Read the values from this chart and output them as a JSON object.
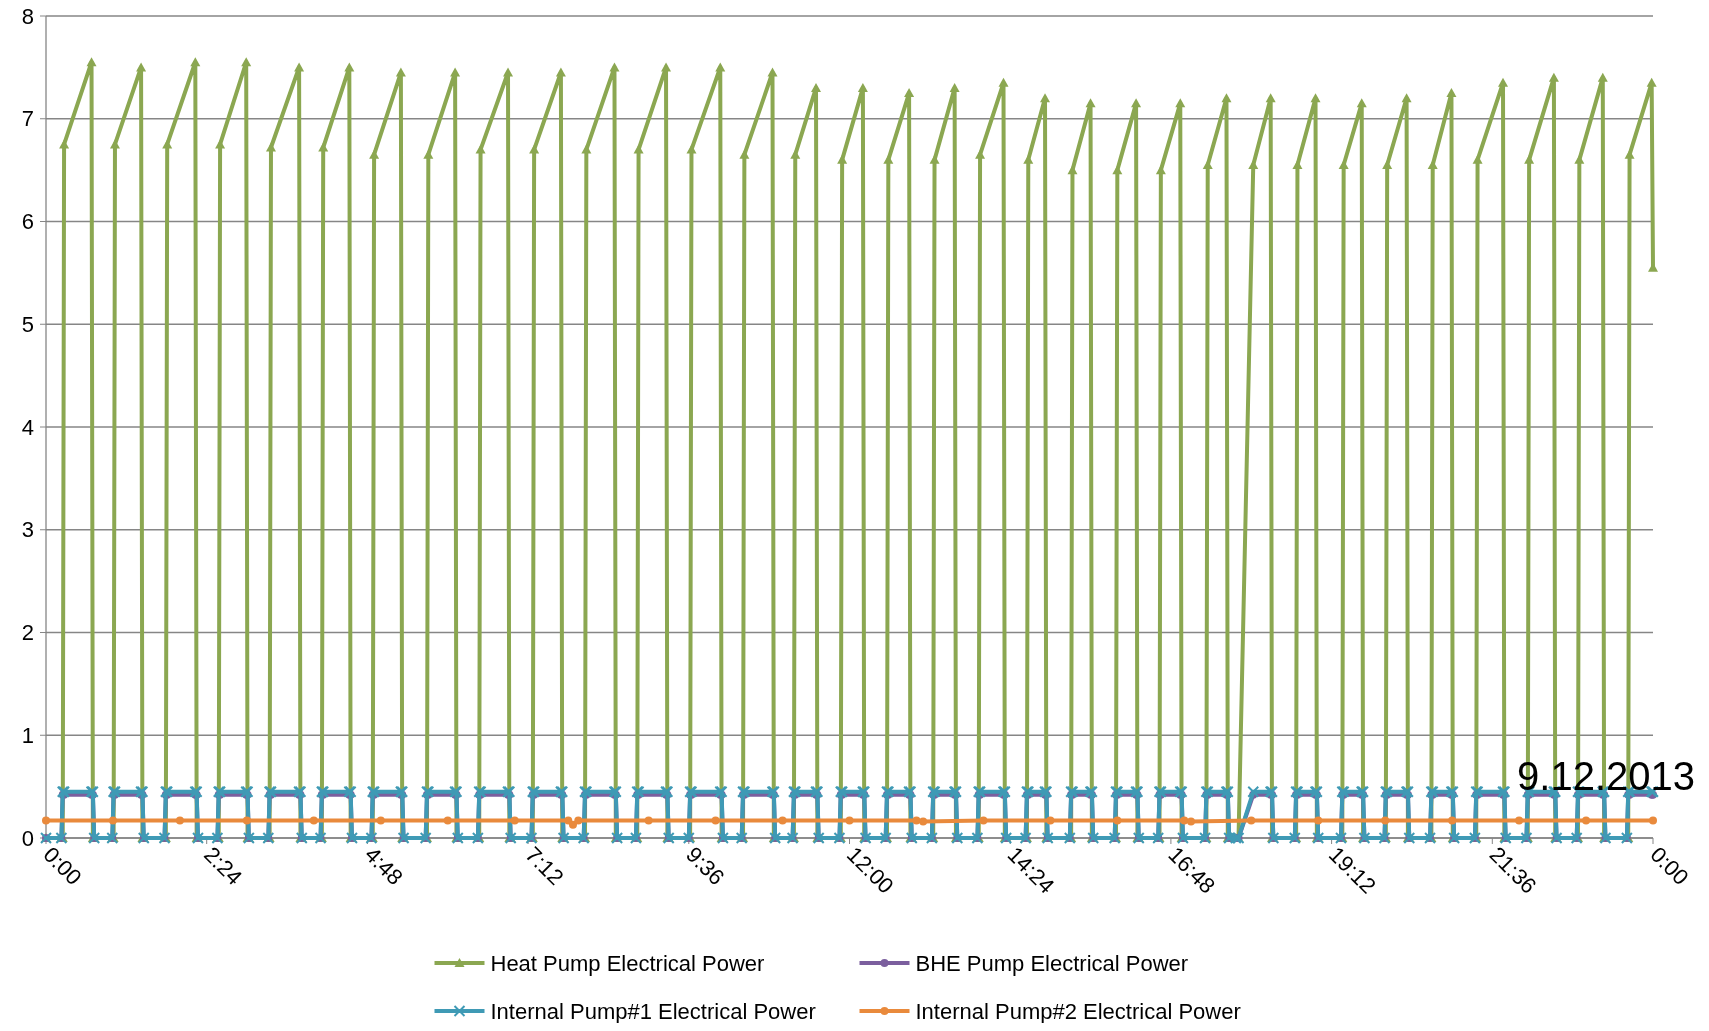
{
  "chart_data": {
    "type": "line",
    "annotations": [
      "9.12.2013"
    ],
    "x": [
      0,
      0.23,
      0.25,
      0.27,
      0.68,
      0.7,
      0.72,
      0.99,
      1.01,
      1.03,
      1.42,
      1.44,
      1.46,
      1.77,
      1.79,
      1.81,
      2.23,
      2.25,
      2.27,
      2.56,
      2.58,
      2.6,
      2.99,
      3.01,
      3.03,
      3.32,
      3.34,
      3.36,
      3.78,
      3.8,
      3.82,
      4.1,
      4.12,
      4.14,
      4.53,
      4.55,
      4.57,
      4.86,
      4.88,
      4.9,
      5.3,
      5.32,
      5.34,
      5.67,
      5.69,
      5.71,
      6.11,
      6.13,
      6.15,
      6.45,
      6.47,
      6.49,
      6.9,
      6.92,
      6.94,
      7.25,
      7.27,
      7.29,
      7.69,
      7.71,
      7.73,
      8.03,
      8.05,
      8.07,
      8.49,
      8.51,
      8.53,
      8.81,
      8.83,
      8.85,
      9.26,
      9.28,
      9.3,
      9.6,
      9.62,
      9.64,
      10.07,
      10.09,
      10.11,
      10.39,
      10.41,
      10.43,
      10.85,
      10.87,
      10.89,
      11.15,
      11.17,
      11.19,
      11.5,
      11.52,
      11.54,
      11.85,
      11.87,
      11.89,
      12.2,
      12.22,
      12.24,
      12.54,
      12.56,
      12.58,
      12.89,
      12.91,
      12.93,
      13.23,
      13.25,
      13.27,
      13.57,
      13.59,
      13.61,
      13.91,
      13.93,
      13.95,
      14.3,
      14.32,
      14.34,
      14.63,
      14.65,
      14.67,
      14.92,
      14.94,
      14.96,
      15.29,
      15.31,
      15.33,
      15.6,
      15.62,
      15.64,
      15.96,
      15.98,
      16.0,
      16.28,
      16.3,
      16.32,
      16.61,
      16.63,
      16.65,
      16.94,
      16.96,
      16.98,
      17.31,
      17.33,
      17.35,
      17.63,
      17.65,
      17.67,
      17.77,
      17.81,
      18.03,
      18.29,
      18.31,
      18.33,
      18.65,
      18.67,
      18.69,
      18.96,
      18.98,
      19.0,
      19.34,
      19.36,
      19.38,
      19.65,
      19.67,
      19.69,
      19.99,
      20.01,
      20.03,
      20.32,
      20.34,
      20.36,
      20.67,
      20.69,
      20.71,
      20.99,
      21.01,
      21.03,
      21.34,
      21.36,
      21.38,
      21.76,
      21.78,
      21.8,
      22.11,
      22.13,
      22.15,
      22.52,
      22.54,
      22.56,
      22.86,
      22.88,
      22.9,
      23.25,
      23.27,
      23.29,
      23.61,
      23.63,
      23.65,
      23.98,
      24.0
    ],
    "series": [
      {
        "name": "Heat Pump Electrical Power",
        "color": "#8ba751",
        "marker": "triangle",
        "values": [
          0,
          0,
          0,
          6.75,
          7.55,
          0,
          0,
          0,
          0,
          6.75,
          7.5,
          0,
          0,
          0,
          0,
          6.75,
          7.55,
          0,
          0,
          0,
          0,
          6.75,
          7.55,
          0,
          0,
          0,
          0,
          6.72,
          7.5,
          0,
          0,
          0,
          0,
          6.72,
          7.5,
          0,
          0,
          0,
          0,
          6.65,
          7.45,
          0,
          0,
          0,
          0,
          6.65,
          7.45,
          0,
          0,
          0,
          0,
          6.7,
          7.45,
          0,
          0,
          0,
          0,
          6.7,
          7.45,
          0,
          0,
          0,
          0,
          6.7,
          7.5,
          0,
          0,
          0,
          0,
          6.7,
          7.5,
          0,
          0,
          0,
          0,
          6.7,
          7.5,
          0,
          0,
          0,
          0,
          6.65,
          7.45,
          0,
          0,
          0,
          0,
          6.65,
          7.3,
          0,
          0,
          0,
          0,
          6.6,
          7.3,
          0,
          0,
          0,
          0,
          6.6,
          7.25,
          0,
          0,
          0,
          0,
          6.6,
          7.3,
          0,
          0,
          0,
          0,
          6.65,
          7.35,
          0,
          0,
          0,
          0,
          6.6,
          7.2,
          0,
          0,
          0,
          0,
          6.5,
          7.15,
          0,
          0,
          0,
          0,
          6.5,
          7.15,
          0,
          0,
          0,
          0,
          6.5,
          7.15,
          0,
          0,
          0,
          0,
          6.55,
          7.2,
          0,
          0,
          0,
          0,
          6.55,
          7.2,
          0,
          0,
          0,
          0,
          6.55,
          7.2,
          0,
          0,
          0,
          0,
          6.55,
          7.15,
          0,
          0,
          0,
          0,
          6.55,
          7.2,
          0,
          0,
          0,
          0,
          6.55,
          7.25,
          0,
          0,
          0,
          0,
          6.6,
          7.35,
          0,
          0,
          0,
          0,
          6.6,
          7.4,
          0,
          0,
          0,
          0,
          6.6,
          7.4,
          0,
          0,
          0,
          0,
          6.65,
          7.35,
          5.55
        ]
      },
      {
        "name": "BHE Pump Electrical Power",
        "color": "#7b5f9e",
        "marker": "circle",
        "values": [
          0,
          0,
          0.42,
          0.42,
          0.42,
          0.42,
          0,
          0,
          0.42,
          0.42,
          0.42,
          0.42,
          0,
          0,
          0.42,
          0.42,
          0.42,
          0.42,
          0,
          0,
          0.42,
          0.42,
          0.42,
          0.42,
          0,
          0,
          0.42,
          0.42,
          0.42,
          0.42,
          0,
          0,
          0.42,
          0.42,
          0.42,
          0.42,
          0,
          0,
          0.42,
          0.42,
          0.42,
          0.42,
          0,
          0,
          0.42,
          0.42,
          0.42,
          0.42,
          0,
          0,
          0.42,
          0.42,
          0.42,
          0.42,
          0,
          0,
          0.42,
          0.42,
          0.42,
          0.42,
          0,
          0,
          0.42,
          0.42,
          0.42,
          0.42,
          0,
          0,
          0.42,
          0.42,
          0.42,
          0.42,
          0,
          0,
          0.42,
          0.42,
          0.42,
          0.42,
          0,
          0,
          0.42,
          0.42,
          0.42,
          0.42,
          0,
          0,
          0.42,
          0.42,
          0.42,
          0.42,
          0,
          0,
          0.42,
          0.42,
          0.42,
          0.42,
          0,
          0,
          0.42,
          0.42,
          0.42,
          0.42,
          0,
          0,
          0.42,
          0.42,
          0.42,
          0.42,
          0,
          0,
          0.42,
          0.42,
          0.42,
          0.42,
          0,
          0,
          0.42,
          0.42,
          0.42,
          0.42,
          0,
          0,
          0.42,
          0.42,
          0.42,
          0.42,
          0,
          0,
          0.42,
          0.42,
          0.42,
          0.42,
          0,
          0,
          0.42,
          0.42,
          0.42,
          0.42,
          0,
          0,
          0.42,
          0.42,
          0.42,
          0.42,
          0,
          0,
          0,
          0.42,
          0.42,
          0.42,
          0,
          0,
          0.42,
          0.42,
          0.42,
          0.42,
          0,
          0,
          0.42,
          0.42,
          0.42,
          0.42,
          0,
          0,
          0.42,
          0.42,
          0.42,
          0.42,
          0,
          0,
          0.42,
          0.42,
          0.42,
          0.42,
          0,
          0,
          0.42,
          0.42,
          0.42,
          0.42,
          0,
          0,
          0.42,
          0.42,
          0.42,
          0.42,
          0,
          0,
          0.42,
          0.42,
          0.42,
          0.42,
          0,
          0,
          0.42,
          0.42,
          0.42,
          0.42
        ]
      },
      {
        "name": "Internal Pump#1 Electrical Power",
        "color": "#3f9ab5",
        "marker": "cross",
        "values": [
          0,
          0,
          0.45,
          0.45,
          0.45,
          0.45,
          0,
          0,
          0.45,
          0.45,
          0.45,
          0.45,
          0,
          0,
          0.45,
          0.45,
          0.45,
          0.45,
          0,
          0,
          0.45,
          0.45,
          0.45,
          0.45,
          0,
          0,
          0.45,
          0.45,
          0.45,
          0.45,
          0,
          0,
          0.45,
          0.45,
          0.45,
          0.45,
          0,
          0,
          0.45,
          0.45,
          0.45,
          0.45,
          0,
          0,
          0.45,
          0.45,
          0.45,
          0.45,
          0,
          0,
          0.45,
          0.45,
          0.45,
          0.45,
          0,
          0,
          0.45,
          0.45,
          0.45,
          0.45,
          0,
          0,
          0.45,
          0.45,
          0.45,
          0.45,
          0,
          0,
          0.45,
          0.45,
          0.45,
          0.45,
          0,
          0,
          0.45,
          0.45,
          0.45,
          0.45,
          0,
          0,
          0.45,
          0.45,
          0.45,
          0.45,
          0,
          0,
          0.45,
          0.45,
          0.45,
          0.45,
          0,
          0,
          0.45,
          0.45,
          0.45,
          0.45,
          0,
          0,
          0.45,
          0.45,
          0.45,
          0.45,
          0,
          0,
          0.45,
          0.45,
          0.45,
          0.45,
          0,
          0,
          0.45,
          0.45,
          0.45,
          0.45,
          0,
          0,
          0.45,
          0.45,
          0.45,
          0.45,
          0,
          0,
          0.45,
          0.45,
          0.45,
          0.45,
          0,
          0,
          0.45,
          0.45,
          0.45,
          0.45,
          0,
          0,
          0.45,
          0.45,
          0.45,
          0.45,
          0,
          0,
          0.45,
          0.45,
          0.45,
          0.45,
          0,
          0,
          0,
          0.45,
          0.45,
          0.45,
          0,
          0,
          0.45,
          0.45,
          0.45,
          0.45,
          0,
          0,
          0.45,
          0.45,
          0.45,
          0.45,
          0,
          0,
          0.45,
          0.45,
          0.45,
          0.45,
          0,
          0,
          0.45,
          0.45,
          0.45,
          0.45,
          0,
          0,
          0.45,
          0.45,
          0.45,
          0.45,
          0,
          0,
          0.45,
          0.45,
          0.45,
          0.45,
          0,
          0,
          0.45,
          0.45,
          0.45,
          0.45,
          0,
          0,
          0.45,
          0.45,
          0.45,
          0.45
        ]
      },
      {
        "name": "Internal Pump#2 Electrical Power",
        "color": "#e98a3c",
        "marker": "circle",
        "x": [
          0,
          1,
          2,
          3,
          4,
          5,
          6,
          7,
          7.8,
          7.87,
          7.95,
          9,
          10,
          11,
          12,
          13,
          13.1,
          14,
          15,
          16,
          17,
          17.1,
          18,
          19,
          20,
          21,
          22,
          23,
          24
        ],
        "values": [
          0.17,
          0.17,
          0.17,
          0.17,
          0.17,
          0.17,
          0.17,
          0.17,
          0.17,
          0.13,
          0.17,
          0.17,
          0.17,
          0.17,
          0.17,
          0.17,
          0.16,
          0.17,
          0.17,
          0.17,
          0.17,
          0.16,
          0.17,
          0.17,
          0.17,
          0.17,
          0.17,
          0.17,
          0.17
        ]
      }
    ],
    "xlim": [
      0,
      24
    ],
    "xticks": [
      {
        "value": 0,
        "label": "0:00"
      },
      {
        "value": 2.4,
        "label": "2:24"
      },
      {
        "value": 4.8,
        "label": "4:48"
      },
      {
        "value": 7.2,
        "label": "7:12"
      },
      {
        "value": 9.6,
        "label": "9:36"
      },
      {
        "value": 12,
        "label": "12:00"
      },
      {
        "value": 14.4,
        "label": "14:24"
      },
      {
        "value": 16.8,
        "label": "16:48"
      },
      {
        "value": 19.2,
        "label": "19:12"
      },
      {
        "value": 21.6,
        "label": "21:36"
      },
      {
        "value": 24,
        "label": "0:00"
      }
    ],
    "ylim": [
      0,
      8
    ],
    "yticks": [
      0,
      1,
      2,
      3,
      4,
      5,
      6,
      7,
      8
    ],
    "grid": "y",
    "legend": "bottom",
    "line_style": "solid"
  }
}
